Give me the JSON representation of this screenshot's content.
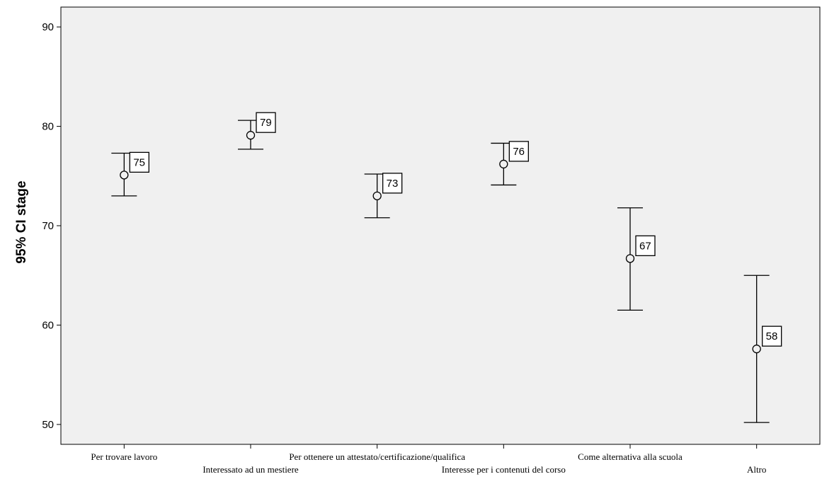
{
  "chart_data": {
    "type": "errorbar",
    "ylabel": "95% CI stage",
    "xlabel": "",
    "ylim": [
      48,
      92
    ],
    "yticks": [
      50,
      60,
      70,
      80,
      90
    ],
    "grid": false,
    "colors": {
      "plot_background": "#f0f0f0",
      "frame": "#000000",
      "marks": "#000000",
      "label_box_fill": "#ffffff"
    },
    "categories": [
      "Per trovare lavoro",
      "Interessato ad un mestiere",
      "Per ottenere un attestato/certificazione/qualifica",
      "Interesse per i contenuti del corso",
      "Come alternativa alla scuola",
      "Altro"
    ],
    "points": [
      {
        "mean": 75.1,
        "lower": 73.0,
        "upper": 77.3,
        "label": "75"
      },
      {
        "mean": 79.1,
        "lower": 77.7,
        "upper": 80.6,
        "label": "79"
      },
      {
        "mean": 73.0,
        "lower": 70.8,
        "upper": 75.2,
        "label": "73"
      },
      {
        "mean": 76.2,
        "lower": 74.1,
        "upper": 78.3,
        "label": "76"
      },
      {
        "mean": 66.7,
        "lower": 61.5,
        "upper": 71.8,
        "label": "67"
      },
      {
        "mean": 57.6,
        "lower": 50.2,
        "upper": 65.0,
        "label": "58"
      }
    ]
  }
}
